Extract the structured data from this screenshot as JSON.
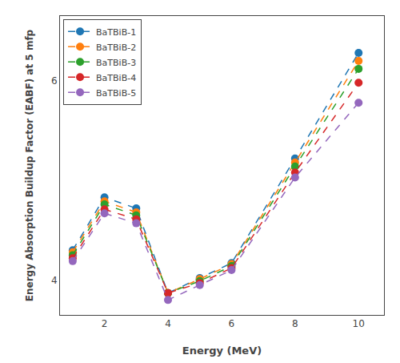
{
  "chart_data": {
    "type": "line",
    "x": [
      1,
      2,
      3,
      4,
      5,
      6,
      8,
      10
    ],
    "series": [
      {
        "name": "BaTBiB-1",
        "values": [
          4.3,
          4.83,
          4.72,
          3.87,
          4.02,
          4.17,
          5.22,
          6.28
        ]
      },
      {
        "name": "BaTBiB-2",
        "values": [
          4.28,
          4.79,
          4.68,
          3.87,
          4.01,
          4.16,
          5.18,
          6.2
        ]
      },
      {
        "name": "BaTBiB-3",
        "values": [
          4.25,
          4.76,
          4.65,
          3.87,
          3.99,
          4.14,
          5.14,
          6.12
        ]
      },
      {
        "name": "BaTBiB-4",
        "values": [
          4.22,
          4.71,
          4.61,
          3.87,
          3.97,
          4.12,
          5.08,
          5.98
        ]
      },
      {
        "name": "BaTBiB-5",
        "values": [
          4.19,
          4.67,
          4.57,
          3.8,
          3.95,
          4.1,
          5.03,
          5.78
        ]
      }
    ],
    "xlabel": "Energy (MeV)",
    "ylabel": "Energy Absorption Buildup Factor (EABF) at 5 mfp",
    "xlim": [
      0.6,
      10.8
    ],
    "ylim": [
      3.65,
      6.65
    ],
    "xticks": [
      2,
      4,
      6,
      8,
      10
    ],
    "yticks": [
      4,
      6
    ],
    "marker": "circle",
    "line_style": "dashed",
    "legend": "upper left",
    "grid": false
  }
}
